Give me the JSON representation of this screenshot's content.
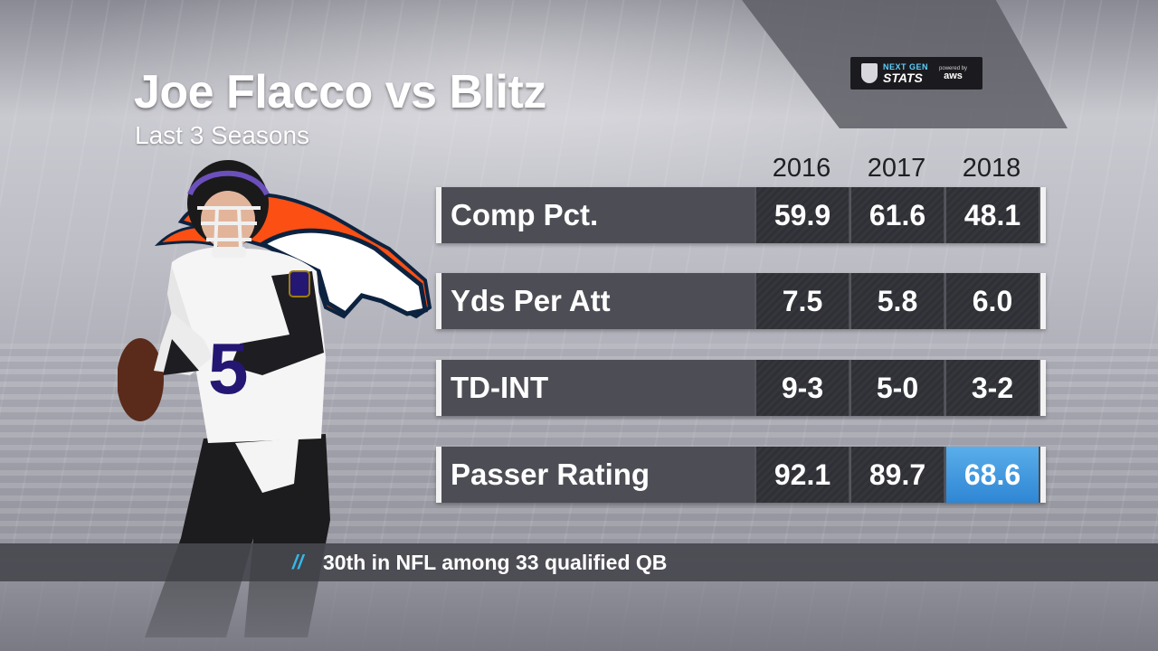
{
  "branding": {
    "ngs_top": "NEXT GEN",
    "ngs_bottom": "STATS",
    "powered_by": "powered by",
    "aws": "aws",
    "accent_color": "#35b8e8",
    "highlight_color": "#2f86d4"
  },
  "header": {
    "title": "Joe Flacco vs Blitz",
    "subtitle": "Last 3 Seasons"
  },
  "table": {
    "columns": [
      "2016",
      "2017",
      "2018"
    ],
    "rows": [
      {
        "label": "Comp Pct.",
        "values": [
          "59.9",
          "61.6",
          "48.1"
        ],
        "highlight_index": -1
      },
      {
        "label": "Yds Per Att",
        "values": [
          "7.5",
          "5.8",
          "6.0"
        ],
        "highlight_index": -1
      },
      {
        "label": "TD-INT",
        "values": [
          "9-3",
          "5-0",
          "3-2"
        ],
        "highlight_index": -1
      },
      {
        "label": "Passer Rating",
        "values": [
          "92.1",
          "89.7",
          "68.6"
        ],
        "highlight_index": 2
      }
    ]
  },
  "footer": {
    "slash": "//",
    "text": "30th in NFL among 33 qualified QB"
  },
  "art": {
    "player_icon": "quarterback-player-icon",
    "player_number": "5",
    "team_logo_icon": "broncos-horse-logo-icon"
  }
}
